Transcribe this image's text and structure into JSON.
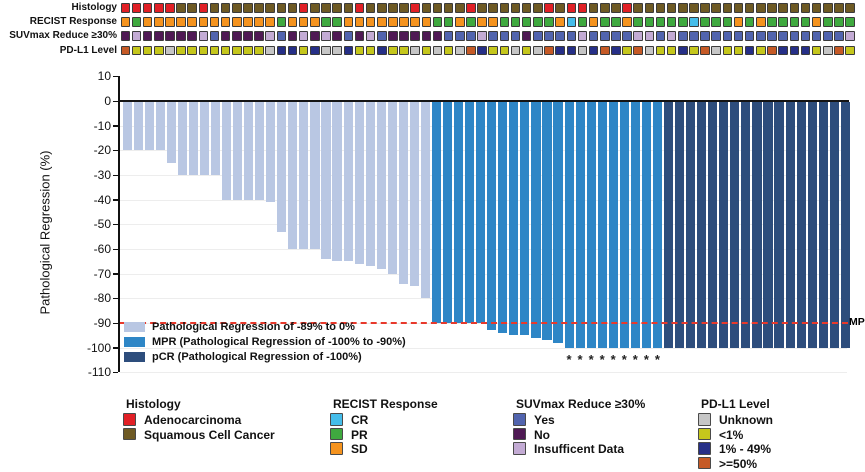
{
  "tracks": {
    "labels": [
      "Histology",
      "RECIST Response",
      "SUVmax Reduce ≥30%",
      "PD-L1 Level"
    ],
    "palette": {
      "R": "#e12026",
      "B": "#6e5a24",
      "O": "#f5931e",
      "G": "#3fa93f",
      "C": "#45bdea",
      "Y": "#5164ae",
      "N": "#4f1a54",
      "I": "#c3abd4",
      "U": "#c6c6c6",
      "Y1": "#c5c71c",
      "B49": "#262f87",
      "O50": "#c55a26"
    },
    "rows": [
      {
        "name": "histology",
        "codes": [
          "R",
          "R",
          "R",
          "R",
          "R",
          "B",
          "B",
          "R",
          "B",
          "B",
          "B",
          "B",
          "B",
          "B",
          "B",
          "B",
          "R",
          "B",
          "B",
          "B",
          "B",
          "R",
          "B",
          "B",
          "B",
          "B",
          "R",
          "B",
          "B",
          "B",
          "B",
          "R",
          "B",
          "B",
          "B",
          "B",
          "B",
          "B",
          "R",
          "B",
          "R",
          "R",
          "B",
          "B",
          "B",
          "R",
          "B",
          "B",
          "B",
          "B",
          "B",
          "B",
          "B",
          "B",
          "B",
          "B",
          "B",
          "B",
          "B",
          "B",
          "B",
          "B",
          "B",
          "B",
          "B",
          "B"
        ]
      },
      {
        "name": "recist-response",
        "codes": [
          "O",
          "G",
          "O",
          "O",
          "O",
          "O",
          "O",
          "O",
          "O",
          "O",
          "O",
          "O",
          "O",
          "O",
          "G",
          "O",
          "O",
          "O",
          "G",
          "G",
          "O",
          "O",
          "O",
          "O",
          "O",
          "O",
          "O",
          "O",
          "G",
          "G",
          "O",
          "G",
          "O",
          "O",
          "G",
          "G",
          "G",
          "G",
          "G",
          "O",
          "C",
          "G",
          "O",
          "G",
          "G",
          "O",
          "G",
          "G",
          "G",
          "G",
          "G",
          "C",
          "G",
          "G",
          "G",
          "O",
          "G",
          "O",
          "G",
          "G",
          "G",
          "G",
          "O",
          "G",
          "G",
          "G"
        ]
      },
      {
        "name": "suvmax-reduce",
        "codes": [
          "N",
          "I",
          "N",
          "N",
          "N",
          "N",
          "N",
          "I",
          "Y",
          "N",
          "N",
          "N",
          "N",
          "I",
          "Y",
          "N",
          "I",
          "N",
          "I",
          "N",
          "Y",
          "N",
          "I",
          "Y",
          "N",
          "N",
          "N",
          "N",
          "N",
          "Y",
          "Y",
          "Y",
          "I",
          "Y",
          "Y",
          "Y",
          "N",
          "Y",
          "Y",
          "Y",
          "Y",
          "I",
          "Y",
          "Y",
          "Y",
          "Y",
          "I",
          "I",
          "Y",
          "I",
          "Y",
          "Y",
          "Y",
          "Y",
          "Y",
          "Y",
          "Y",
          "Y",
          "Y",
          "Y",
          "Y",
          "Y",
          "Y",
          "Y",
          "Y",
          "I"
        ]
      },
      {
        "name": "pdl1-level",
        "codes": [
          "O50",
          "Y1",
          "Y1",
          "Y1",
          "U",
          "Y1",
          "Y1",
          "Y1",
          "Y1",
          "Y1",
          "Y1",
          "Y1",
          "Y1",
          "U",
          "B49",
          "B49",
          "Y1",
          "B49",
          "U",
          "U",
          "B49",
          "Y1",
          "Y1",
          "B49",
          "Y1",
          "Y1",
          "U",
          "Y1",
          "U",
          "Y1",
          "U",
          "O50",
          "B49",
          "Y1",
          "Y1",
          "U",
          "Y1",
          "U",
          "O50",
          "B49",
          "B49",
          "U",
          "B49",
          "O50",
          "B49",
          "Y1",
          "O50",
          "U",
          "Y1",
          "Y1",
          "B49",
          "Y1",
          "O50",
          "U",
          "Y1",
          "Y1",
          "B49",
          "Y1",
          "O50",
          "B49",
          "B49",
          "B49",
          "Y1",
          "U",
          "O50",
          "Y1"
        ]
      }
    ]
  },
  "chart_data": {
    "type": "bar",
    "title": "",
    "ylabel": "Pathological Regression (%)",
    "ylim": [
      -110,
      10
    ],
    "yticks": [
      10,
      0,
      -10,
      -20,
      -30,
      -40,
      -50,
      -60,
      -70,
      -80,
      -90,
      -100,
      -110
    ],
    "values": [
      -20,
      -20,
      -20,
      -20,
      -25,
      -30,
      -30,
      -30,
      -30,
      -40,
      -40,
      -40,
      -40,
      -41,
      -53,
      -60,
      -60,
      -60,
      -64,
      -65,
      -65,
      -66,
      -67,
      -68,
      -70,
      -74,
      -75,
      -80,
      -90,
      -90,
      -90,
      -90,
      -90,
      -93,
      -94,
      -95,
      -95,
      -96,
      -97,
      -98,
      -100,
      -100,
      -100,
      -100,
      -100,
      -100,
      -100,
      -100,
      -100,
      -100,
      -100,
      -100,
      -100,
      -100,
      -100,
      -100,
      -100,
      -100,
      -100,
      -100,
      -100,
      -100,
      -100,
      -100,
      -100,
      -100
    ],
    "bar_classes": [
      "light",
      "light",
      "light",
      "light",
      "light",
      "light",
      "light",
      "light",
      "light",
      "light",
      "light",
      "light",
      "light",
      "light",
      "light",
      "light",
      "light",
      "light",
      "light",
      "light",
      "light",
      "light",
      "light",
      "light",
      "light",
      "light",
      "light",
      "light",
      "mpr",
      "mpr",
      "mpr",
      "mpr",
      "mpr",
      "mpr",
      "mpr",
      "mpr",
      "mpr",
      "mpr",
      "mpr",
      "mpr",
      "mpr",
      "mpr",
      "mpr",
      "mpr",
      "mpr",
      "mpr",
      "mpr",
      "mpr",
      "mpr",
      "pcr",
      "pcr",
      "pcr",
      "pcr",
      "pcr",
      "pcr",
      "pcr",
      "pcr",
      "pcr",
      "pcr",
      "pcr",
      "pcr",
      "pcr",
      "pcr",
      "pcr",
      "pcr",
      "pcr"
    ],
    "asterisk_bars": [
      41,
      42,
      43,
      44,
      45,
      46,
      47,
      48,
      49
    ],
    "asterisk_glyph": "*",
    "bar_colors": {
      "light": "#b9c7e3",
      "mpr": "#2e86c6",
      "pcr": "#2d4d7c"
    },
    "threshold": {
      "y": -90,
      "label": "MPR",
      "color": "#e8392b"
    },
    "plot_legend": [
      {
        "key": "light",
        "label": "Pathological Regression of -89% to 0%"
      },
      {
        "key": "mpr",
        "label": "MPR (Pathological Regression of -100% to -90%)"
      },
      {
        "key": "pcr",
        "label": "pCR (Pathological Regression of -100%)"
      }
    ],
    "legend_position": "lower-left",
    "grid": true
  },
  "bottom_legend": {
    "groups": [
      {
        "title": "Histology",
        "items": [
          {
            "label": "Adenocarcinoma",
            "color": "#e12026"
          },
          {
            "label": "Squamous Cell Cancer",
            "color": "#6e5a24"
          }
        ]
      },
      {
        "title": "RECIST Response",
        "items": [
          {
            "label": "CR",
            "color": "#45bdea"
          },
          {
            "label": "PR",
            "color": "#3fa93f"
          },
          {
            "label": "SD",
            "color": "#f5931e"
          }
        ]
      },
      {
        "title": "SUVmax Reduce ≥30%",
        "items": [
          {
            "label": "Yes",
            "color": "#5164ae"
          },
          {
            "label": "No",
            "color": "#4f1a54"
          },
          {
            "label": "Insufficent Data",
            "color": "#c3abd4"
          }
        ]
      },
      {
        "title": "PD-L1 Level",
        "items": [
          {
            "label": "Unknown",
            "color": "#c6c6c6"
          },
          {
            "label": "<1%",
            "color": "#c5c71c"
          },
          {
            "label": "1% - 49%",
            "color": "#262f87"
          },
          {
            "label": ">=50%",
            "color": "#c55a26"
          }
        ]
      }
    ]
  }
}
